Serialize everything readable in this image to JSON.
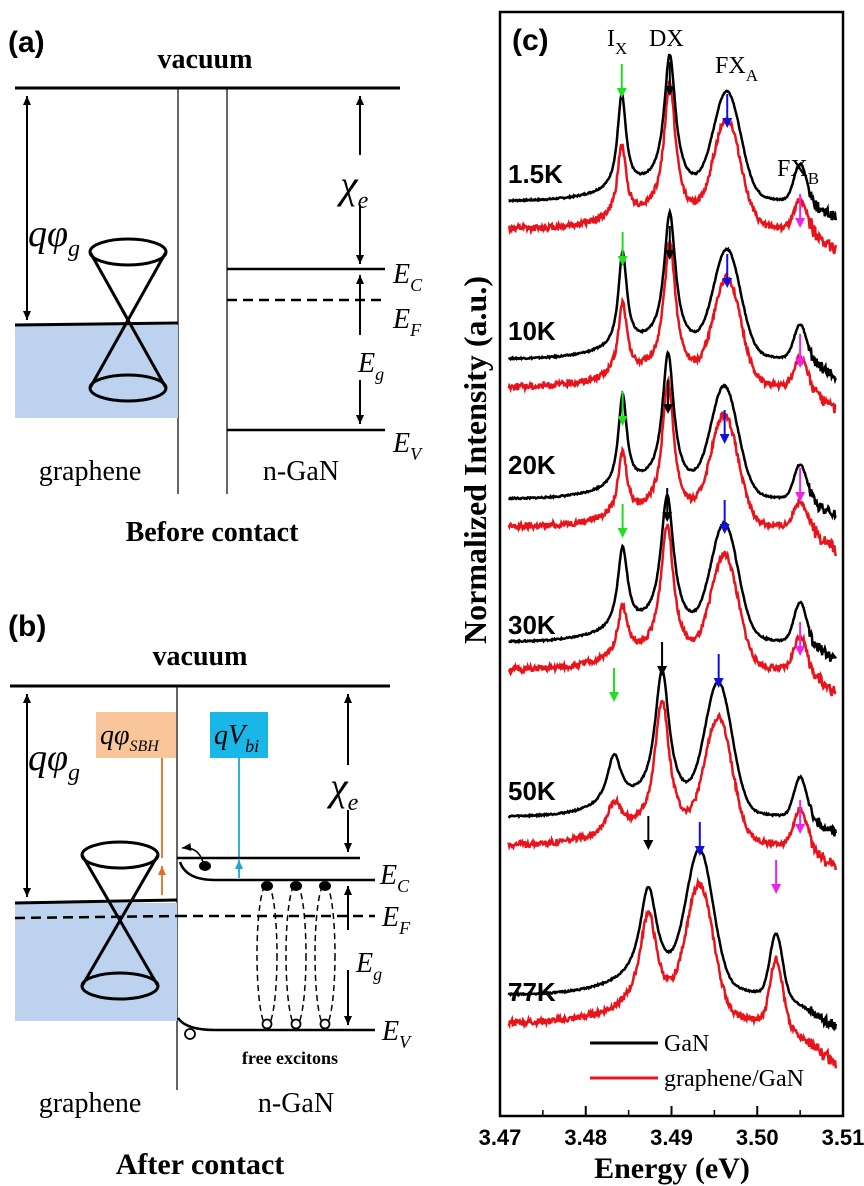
{
  "panel_a": {
    "label": "(a)",
    "vacuum": "vacuum",
    "work_function": "qφ",
    "work_function_sub": "g",
    "affinity": "χ",
    "affinity_sub": "e",
    "ec": "E",
    "ec_sub": "C",
    "ef": "E",
    "ef_sub": "F",
    "eg": "E",
    "eg_sub": "g",
    "ev": "E",
    "ev_sub": "V",
    "graphene": "graphene",
    "ngan": "n-GaN",
    "caption": "Before contact"
  },
  "panel_b": {
    "label": "(b)",
    "vacuum": "vacuum",
    "work_function": "qφ",
    "work_function_sub": "g",
    "sbh": "qφ",
    "sbh_sub": "SBH",
    "vbi": "qV",
    "vbi_sub": "bi",
    "affinity": "χ",
    "affinity_sub": "e",
    "ec": "E",
    "ec_sub": "C",
    "ef": "E",
    "ef_sub": "F",
    "eg": "E",
    "eg_sub": "g",
    "ev": "E",
    "ev_sub": "V",
    "free_excitons": "free excitons",
    "graphene": "graphene",
    "ngan": "n-GaN",
    "caption": "After contact",
    "colors": {
      "sbh_box": "#f8c69a",
      "vbi_box": "#19b7e8",
      "sbh_arrow": "#e07020",
      "vbi_arrow": "#1aa7d8",
      "graphene_fill": "#bcd2ee"
    }
  },
  "chart_data": {
    "type": "line",
    "label": "(c)",
    "xlabel": "Energy (eV)",
    "ylabel": "Normalized Intensity  (a.u.)",
    "xlim": [
      3.47,
      3.51
    ],
    "x_ticks": [
      "3.47",
      "3.48",
      "3.49",
      "3.50",
      "3.51"
    ],
    "peak_labels": [
      {
        "text": "I",
        "sub": "X"
      },
      {
        "text": "DX",
        "sub": ""
      },
      {
        "text": "FX",
        "sub": "A"
      },
      {
        "text": "FX",
        "sub": "B"
      }
    ],
    "temperatures": [
      "1.5K",
      "10K",
      "20K",
      "30K",
      "50K",
      "77K"
    ],
    "legend": [
      "GaN",
      "graphene/GaN"
    ],
    "series_colors": {
      "GaN": "#000000",
      "graphene/GaN": "#e8141c"
    },
    "arrow_colors": {
      "IX": "#22dd22",
      "DX": "#000000",
      "FXA": "#1010dd",
      "FXB": "#ee22ee"
    },
    "peaks_eV": {
      "1.5K": {
        "IX": 3.4842,
        "DX": 3.4898,
        "FXA": 3.4965,
        "FXB": 3.505
      },
      "10K": {
        "IX": 3.4843,
        "DX": 3.4898,
        "FXA": 3.4965,
        "FXB": 3.505
      },
      "20K": {
        "IX": 3.4843,
        "DX": 3.4896,
        "FXA": 3.4962,
        "FXB": 3.505
      },
      "30K": {
        "IX": 3.4843,
        "DX": 3.4895,
        "FXA": 3.4962,
        "FXB": 3.505
      },
      "50K": {
        "IX": 3.4833,
        "DX": 3.4889,
        "FXA": 3.4955,
        "FXB": 3.505
      },
      "77K": {
        "DX": 3.4873,
        "FXA": 3.4933,
        "FXB": 3.5022
      }
    }
  }
}
